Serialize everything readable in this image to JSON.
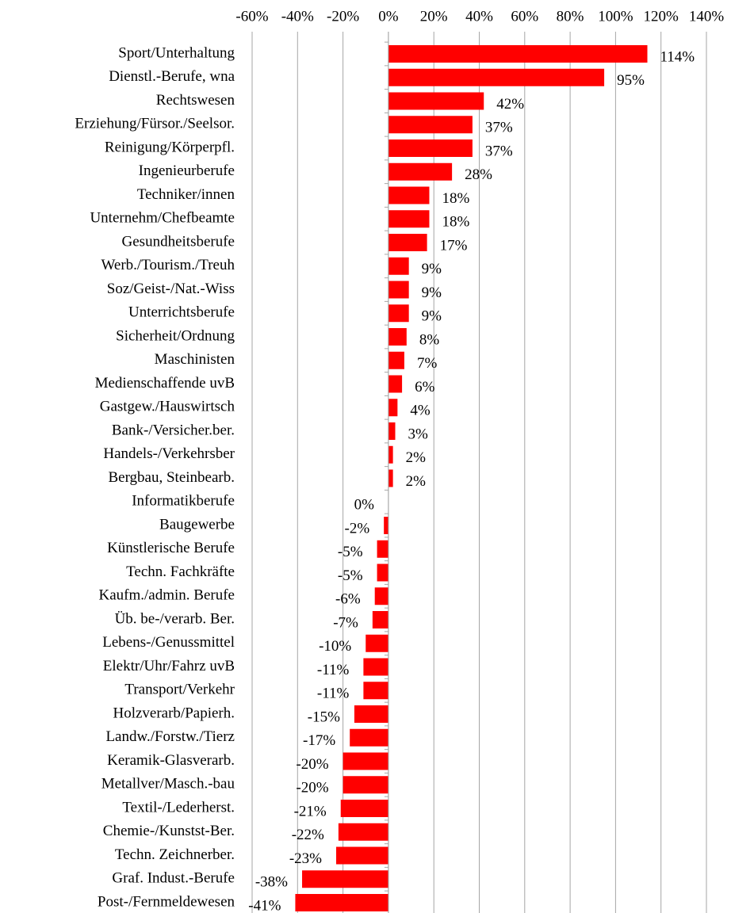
{
  "chart_data": {
    "type": "barh",
    "categories": [
      "Sport/Unterhaltung",
      "Dienstl.-Berufe, wna",
      "Rechtswesen",
      "Erziehung/Fürsor./Seelsor.",
      "Reinigung/Körperpfl.",
      "Ingenieurberufe",
      "Techniker/innen",
      "Unternehm/Chefbeamte",
      "Gesundheitsberufe",
      "Werb./Tourism./Treuh",
      "Soz/Geist-/Nat.-Wiss",
      "Unterrichtsberufe",
      "Sicherheit/Ordnung",
      "Maschinisten",
      "Medienschaffende uvB",
      "Gastgew./Hauswirtsch",
      "Bank-/Versicher.ber.",
      "Handels-/Verkehrsber",
      "Bergbau, Steinbearb.",
      "Informatikberufe",
      "Baugewerbe",
      "Künstlerische Berufe",
      "Techn. Fachkräfte",
      "Kaufm./admin. Berufe",
      "Üb. be-/verarb. Ber.",
      "Lebens-/Genussmittel",
      "Elektr/Uhr/Fahrz uvB",
      "Transport/Verkehr",
      "Holzverarb/Papierh.",
      "Landw./Forstw./Tierz",
      "Keramik-Glasverarb.",
      "Metallver/Masch.-bau",
      "Textil-/Lederherst.",
      "Chemie-/Kunstst-Ber.",
      "Techn. Zeichnerber.",
      "Graf. Indust.-Berufe",
      "Post-/Fernmeldewesen"
    ],
    "values": [
      114,
      95,
      42,
      37,
      37,
      28,
      18,
      18,
      17,
      9,
      9,
      9,
      8,
      7,
      6,
      4,
      3,
      2,
      2,
      0,
      -2,
      -5,
      -5,
      -6,
      -7,
      -10,
      -11,
      -11,
      -15,
      -17,
      -20,
      -20,
      -21,
      -22,
      -23,
      -38,
      -41
    ],
    "value_labels": [
      "114%",
      "95%",
      "42%",
      "37%",
      "37%",
      "28%",
      "18%",
      "18%",
      "17%",
      "9%",
      "9%",
      "9%",
      "8%",
      "7%",
      "6%",
      "4%",
      "3%",
      "2%",
      "2%",
      "0%",
      "-2%",
      "-5%",
      "-5%",
      "-6%",
      "-7%",
      "-10%",
      "-11%",
      "-11%",
      "-15%",
      "-17%",
      "-20%",
      "-20%",
      "-21%",
      "-22%",
      "-23%",
      "-38%",
      "-41%"
    ],
    "color": "#ff0000",
    "xlim": [
      -60,
      140
    ],
    "xticks": [
      {
        "value": -60,
        "label": "-60%"
      },
      {
        "value": -40,
        "label": "-40%"
      },
      {
        "value": -20,
        "label": "-20%"
      },
      {
        "value": 0,
        "label": "0%"
      },
      {
        "value": 20,
        "label": "20%"
      },
      {
        "value": 40,
        "label": "40%"
      },
      {
        "value": 60,
        "label": "60%"
      },
      {
        "value": 80,
        "label": "80%"
      },
      {
        "value": 100,
        "label": "100%"
      },
      {
        "value": 120,
        "label": "120%"
      },
      {
        "value": 140,
        "label": "140%"
      }
    ],
    "grid": true
  }
}
